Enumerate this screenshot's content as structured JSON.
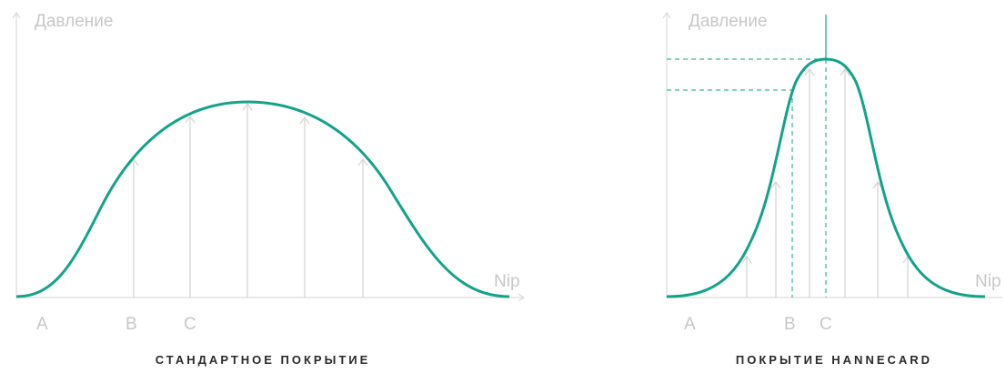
{
  "panels": [
    {
      "y_axis_label": "Давление",
      "x_axis_label": "Nip",
      "point_labels": [
        "A",
        "B",
        "C"
      ],
      "caption": "СТАНДАРТНОЕ ПОКРЫТИЕ"
    },
    {
      "y_axis_label": "Давление",
      "x_axis_label": "Nip",
      "point_labels": [
        "A",
        "B",
        "C"
      ],
      "caption": "ПОКРЫТИЕ HANNECARD"
    }
  ],
  "colors": {
    "curve": "#12a38a",
    "axis": "#dcdcdc",
    "label": "#c7c7c7",
    "caption": "#2a2a2a"
  }
}
